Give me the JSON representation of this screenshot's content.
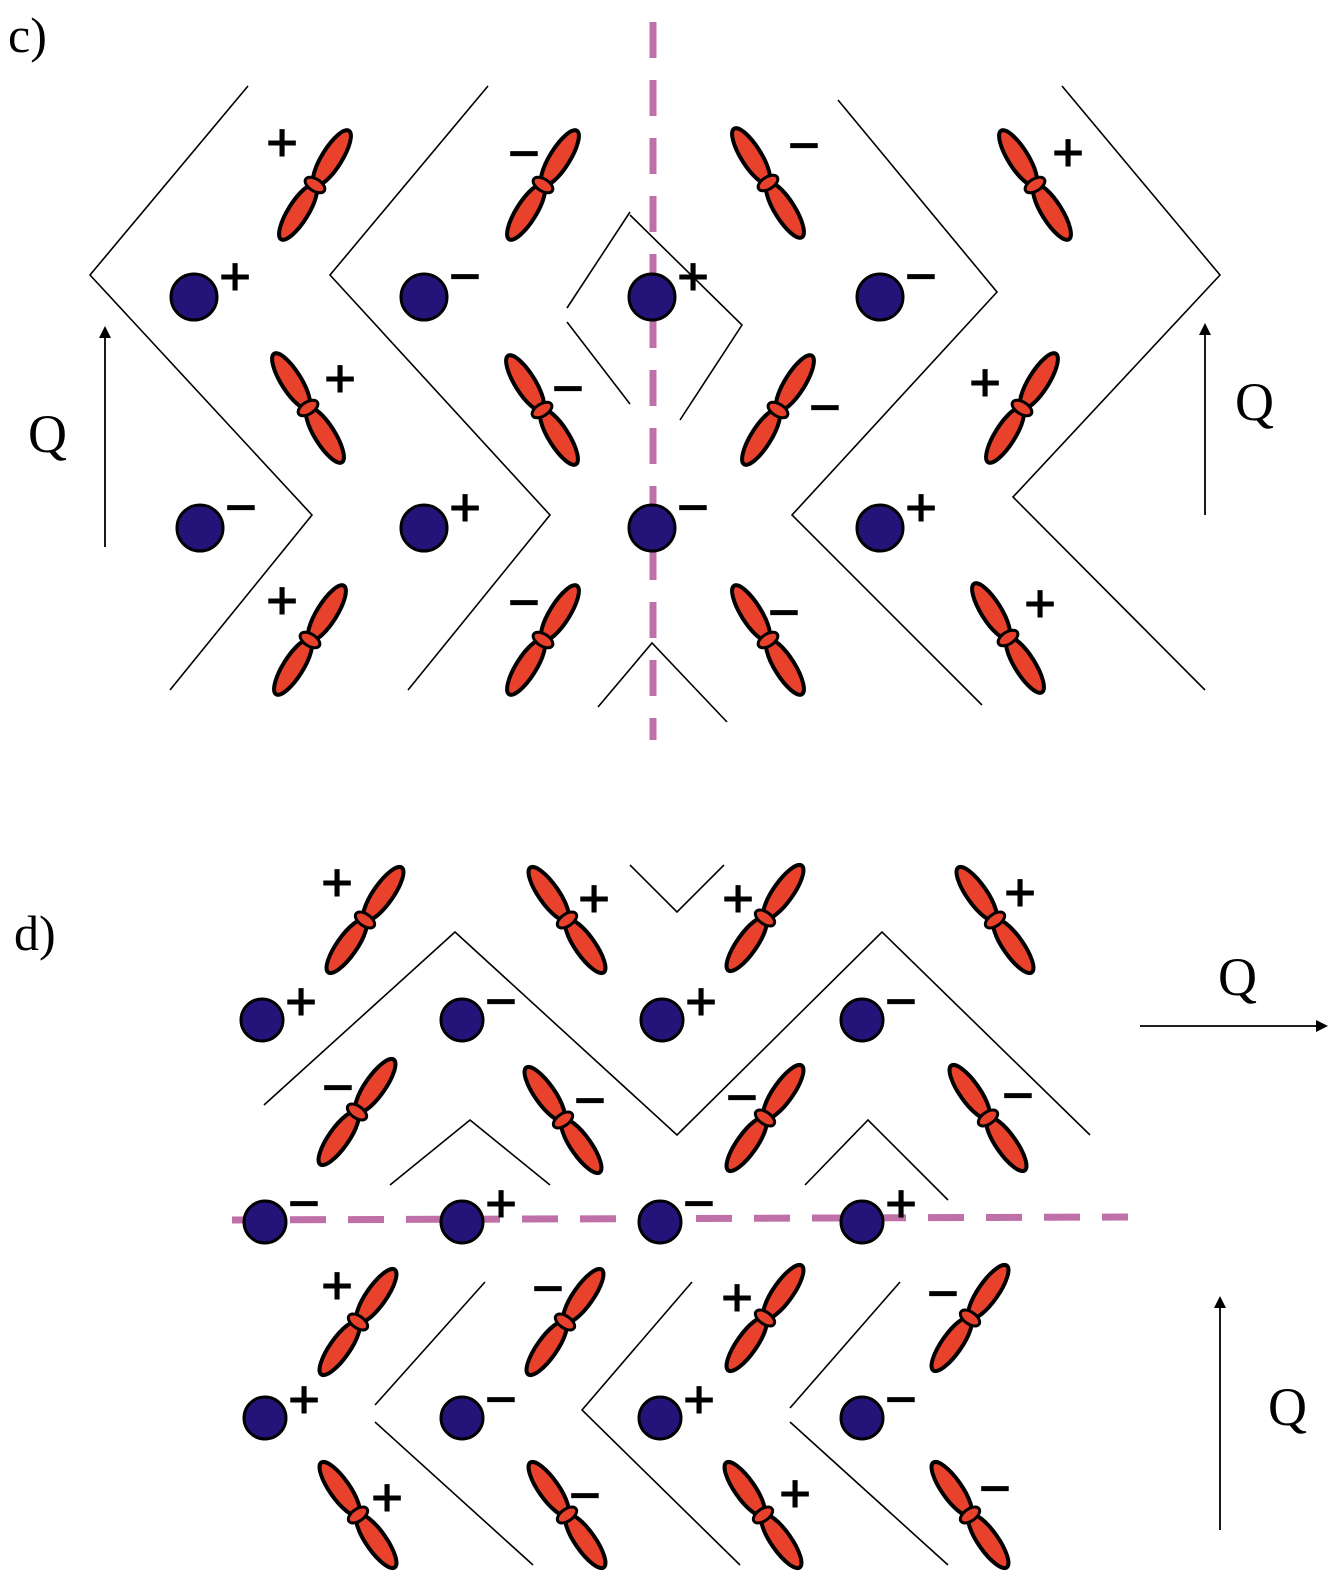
{
  "panels": [
    {
      "label": "c)",
      "q_labels": [
        "Q",
        "Q"
      ],
      "orbital_signs": [
        "+",
        "−",
        "−",
        "+",
        "+",
        "−",
        "−",
        "+",
        "+",
        "−",
        "−",
        "+"
      ],
      "atom_signs": [
        "+",
        "−",
        "+",
        "−",
        "−",
        "+",
        "−",
        "+"
      ]
    },
    {
      "label": "d)",
      "q_labels": [
        "Q",
        "Q"
      ],
      "orbital_signs": [
        "+",
        "+",
        "+",
        "+",
        "−",
        "−",
        "−",
        "−",
        "+",
        "−",
        "+",
        "−",
        "+",
        "−",
        "+",
        "−"
      ],
      "atom_signs": [
        "+",
        "−",
        "+",
        "−",
        "−",
        "+",
        "−",
        "+",
        "+",
        "−",
        "+",
        "−"
      ]
    }
  ],
  "colors": {
    "orbital": "#e8422c",
    "atom": "#24147a",
    "mirror_line": "#c070a8",
    "wall": "#000000"
  }
}
